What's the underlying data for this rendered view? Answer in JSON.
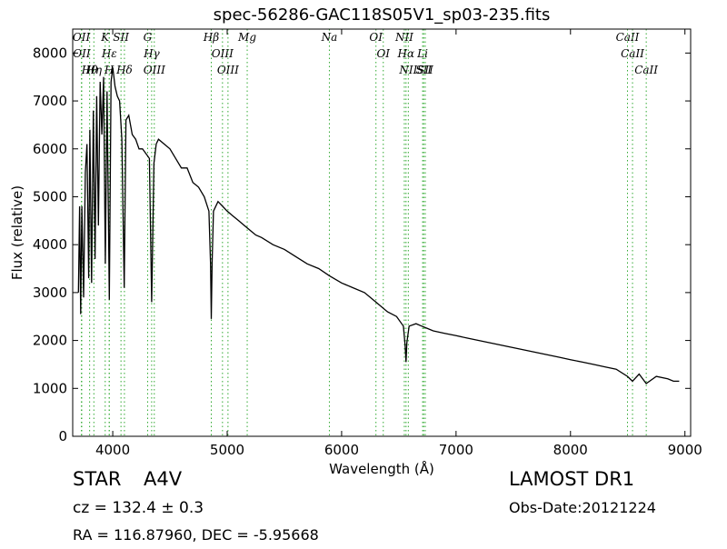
{
  "chart_data": {
    "type": "line",
    "title": "spec-56286-GAC118S05V1_sp03-235.fits",
    "x_label": "Wavelength (Å)",
    "y_label": "Flux (relative)",
    "xlim": [
      3650,
      9050
    ],
    "ylim": [
      0,
      8500
    ],
    "xticks": [
      4000,
      5000,
      6000,
      7000,
      8000,
      9000
    ],
    "yticks": [
      0,
      1000,
      2000,
      3000,
      4000,
      5000,
      6000,
      7000,
      8000
    ],
    "series": [
      {
        "color": "#000000",
        "x": [
          3700,
          3710,
          3720,
          3730,
          3745,
          3760,
          3775,
          3790,
          3800,
          3815,
          3830,
          3845,
          3860,
          3875,
          3890,
          3905,
          3920,
          3935,
          3950,
          3970,
          3985,
          4000,
          4020,
          4040,
          4060,
          4080,
          4100,
          4115,
          4140,
          4170,
          4200,
          4230,
          4260,
          4290,
          4320,
          4340,
          4360,
          4380,
          4400,
          4450,
          4500,
          4550,
          4600,
          4650,
          4700,
          4750,
          4800,
          4840,
          4855,
          4861,
          4868,
          4880,
          4920,
          4960,
          5000,
          5050,
          5100,
          5150,
          5200,
          5250,
          5300,
          5400,
          5500,
          5600,
          5700,
          5800,
          5893,
          6000,
          6100,
          6200,
          6300,
          6400,
          6480,
          6540,
          6555,
          6563,
          6570,
          6590,
          6650,
          6700,
          6750,
          6800,
          6900,
          7000,
          7100,
          7200,
          7300,
          7400,
          7500,
          7600,
          7700,
          7800,
          7900,
          8000,
          8100,
          8200,
          8300,
          8400,
          8498,
          8542,
          8600,
          8662,
          8750,
          8850,
          8900,
          8950
        ],
        "values": [
          3000,
          4800,
          2550,
          4800,
          2900,
          5500,
          6100,
          3300,
          6400,
          3200,
          6800,
          3700,
          7100,
          4400,
          7400,
          6300,
          7500,
          3600,
          7200,
          2850,
          7400,
          7700,
          7300,
          7100,
          7000,
          6200,
          3100,
          6600,
          6700,
          6300,
          6200,
          6000,
          6000,
          5900,
          5800,
          2800,
          5700,
          6100,
          6200,
          6100,
          6000,
          5800,
          5600,
          5600,
          5300,
          5200,
          5000,
          4700,
          3600,
          2450,
          3600,
          4700,
          4900,
          4800,
          4700,
          4600,
          4500,
          4400,
          4300,
          4200,
          4150,
          4000,
          3900,
          3750,
          3600,
          3500,
          3350,
          3200,
          3100,
          3000,
          2800,
          2600,
          2500,
          2300,
          1900,
          1550,
          1950,
          2300,
          2350,
          2300,
          2250,
          2200,
          2150,
          2100,
          2050,
          2000,
          1950,
          1900,
          1850,
          1800,
          1750,
          1700,
          1650,
          1600,
          1550,
          1500,
          1450,
          1400,
          1250,
          1150,
          1300,
          1100,
          1250,
          1200,
          1150,
          1150
        ]
      }
    ],
    "annotation_color": "#33aa33",
    "annotations": [
      {
        "label": "OII",
        "x": 3726
      },
      {
        "label": "OII",
        "x": 3729
      },
      {
        "label": "Hθ",
        "x": 3798
      },
      {
        "label": "Hη",
        "x": 3835
      },
      {
        "label": "K",
        "x": 3934
      },
      {
        "label": "Hε",
        "x": 3970
      },
      {
        "label": "H",
        "x": 3969
      },
      {
        "label": "SII",
        "x": 4072
      },
      {
        "label": "Hδ",
        "x": 4102
      },
      {
        "label": "G",
        "x": 4305
      },
      {
        "label": "Hγ",
        "x": 4340
      },
      {
        "label": "OIII",
        "x": 4363
      },
      {
        "label": "Hβ",
        "x": 4861
      },
      {
        "label": "OIII",
        "x": 4959
      },
      {
        "label": "OIII",
        "x": 5007
      },
      {
        "label": "Mg",
        "x": 5175
      },
      {
        "label": "Na",
        "x": 5893
      },
      {
        "label": "OI",
        "x": 6300
      },
      {
        "label": "OI",
        "x": 6364
      },
      {
        "label": "NII",
        "x": 6548
      },
      {
        "label": "Hα",
        "x": 6563
      },
      {
        "label": "NII",
        "x": 6583
      },
      {
        "label": "Li",
        "x": 6708
      },
      {
        "label": "SII",
        "x": 6717
      },
      {
        "label": "SII",
        "x": 6731
      },
      {
        "label": "CaII",
        "x": 8498
      },
      {
        "label": "CaII",
        "x": 8542
      },
      {
        "label": "CaII",
        "x": 8662
      }
    ]
  },
  "footer": {
    "object": "STAR",
    "subclass": "A4V",
    "survey": "LAMOST DR1",
    "redshift": "cz = 132.4 ± 0.3",
    "obs_date": "Obs-Date:20121224",
    "coords": "RA = 116.87960, DEC = -5.95668"
  }
}
